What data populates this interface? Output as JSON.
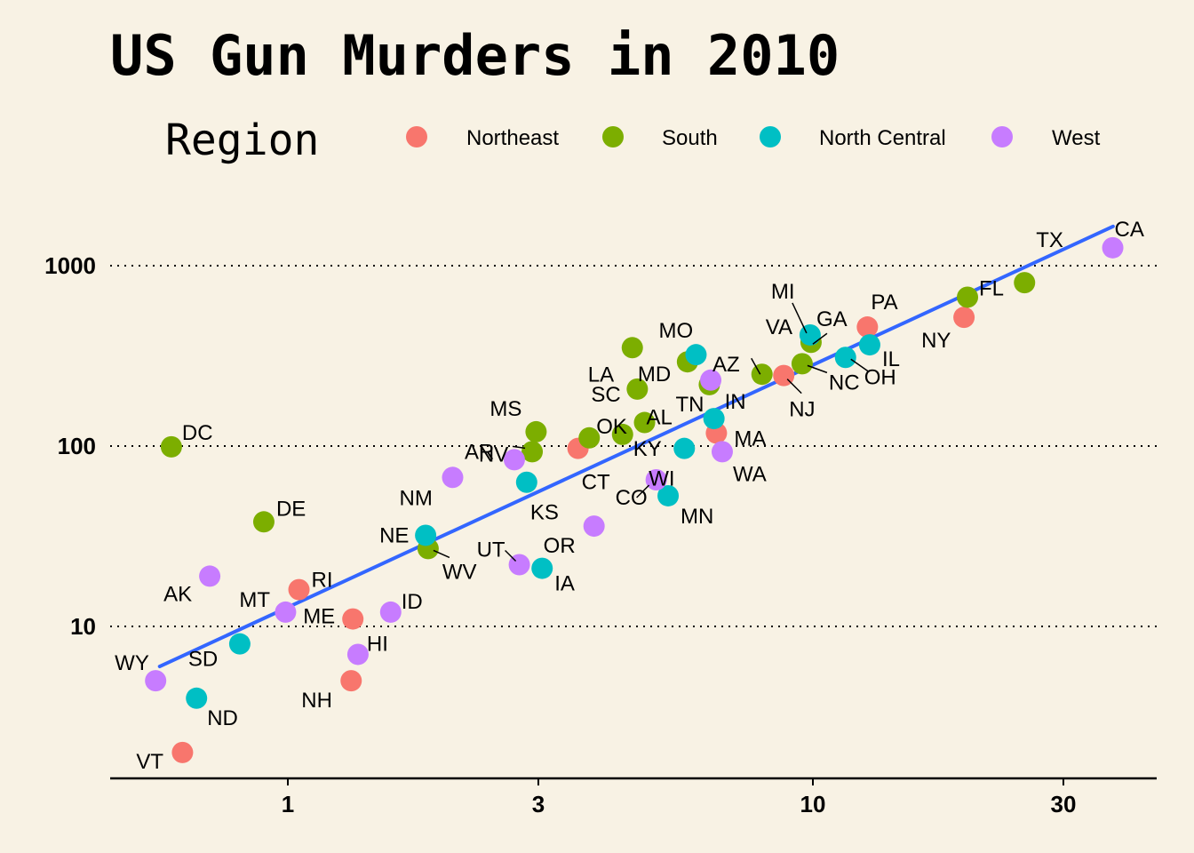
{
  "chart_data": {
    "type": "scatter",
    "title": "US Gun Murders in 2010",
    "xlabel": "",
    "ylabel": "",
    "x_scale": "log10",
    "y_scale": "log10",
    "xlim": [
      0.55,
      42
    ],
    "ylim": [
      2.0,
      2200
    ],
    "x_ticks": [
      1,
      3,
      10,
      30
    ],
    "x_tick_labels": [
      "1",
      "3",
      "10",
      "30"
    ],
    "y_ticks": [
      10,
      100,
      1000
    ],
    "y_tick_labels": [
      "10",
      "100",
      "1000"
    ],
    "grid": "horizontal dotted",
    "legend": {
      "title": "Region",
      "position": "top",
      "entries": [
        {
          "name": "Northeast",
          "color": "#f8766d"
        },
        {
          "name": "South",
          "color": "#7cae00"
        },
        {
          "name": "North Central",
          "color": "#00bfc4"
        },
        {
          "name": "West",
          "color": "#c77cff"
        }
      ]
    },
    "trend_line": {
      "color": "#3366ff",
      "x": [
        0.57,
        37.3
      ],
      "y": [
        6.0,
        1650
      ]
    },
    "series": [
      {
        "name": "Northeast",
        "color": "#f8766d",
        "points": [
          {
            "label": "VT",
            "x": 0.63,
            "y": 2.0
          },
          {
            "label": "NH",
            "x": 1.32,
            "y": 5.0
          },
          {
            "label": "ME",
            "x": 1.33,
            "y": 11
          },
          {
            "label": "RI",
            "x": 1.05,
            "y": 16
          },
          {
            "label": "CT",
            "x": 3.57,
            "y": 97
          },
          {
            "label": "MA",
            "x": 6.55,
            "y": 118
          },
          {
            "label": "NJ",
            "x": 8.8,
            "y": 246
          },
          {
            "label": "PA",
            "x": 12.7,
            "y": 457
          },
          {
            "label": "NY",
            "x": 19.4,
            "y": 517
          }
        ]
      },
      {
        "name": "South",
        "color": "#7cae00",
        "points": [
          {
            "label": "DC",
            "x": 0.6,
            "y": 99
          },
          {
            "label": "DE",
            "x": 0.9,
            "y": 38
          },
          {
            "label": "WV",
            "x": 1.85,
            "y": 27
          },
          {
            "label": "AR",
            "x": 2.92,
            "y": 93
          },
          {
            "label": "MS",
            "x": 2.97,
            "y": 120
          },
          {
            "label": "OK",
            "x": 3.75,
            "y": 111
          },
          {
            "label": "KY",
            "x": 4.34,
            "y": 116
          },
          {
            "label": "SC",
            "x": 4.63,
            "y": 207
          },
          {
            "label": "LA",
            "x": 4.53,
            "y": 351
          },
          {
            "label": "AL",
            "x": 4.78,
            "y": 135
          },
          {
            "label": "MD",
            "x": 5.77,
            "y": 293
          },
          {
            "label": "TN",
            "x": 6.35,
            "y": 219
          },
          {
            "label": "VA",
            "x": 8.0,
            "y": 250
          },
          {
            "label": "NC",
            "x": 9.54,
            "y": 286
          },
          {
            "label": "GA",
            "x": 9.92,
            "y": 376
          },
          {
            "label": "FL",
            "x": 19.7,
            "y": 669
          },
          {
            "label": "TX",
            "x": 25.3,
            "y": 805
          }
        ]
      },
      {
        "name": "North Central",
        "color": "#00bfc4",
        "points": [
          {
            "label": "ND",
            "x": 0.67,
            "y": 4.0
          },
          {
            "label": "SD",
            "x": 0.81,
            "y": 8.0
          },
          {
            "label": "NE",
            "x": 1.83,
            "y": 32
          },
          {
            "label": "IA",
            "x": 3.05,
            "y": 21
          },
          {
            "label": "KS",
            "x": 2.85,
            "y": 63
          },
          {
            "label": "MN",
            "x": 5.3,
            "y": 53
          },
          {
            "label": "WI",
            "x": 5.69,
            "y": 97
          },
          {
            "label": "MO",
            "x": 5.99,
            "y": 321
          },
          {
            "label": "IN",
            "x": 6.48,
            "y": 142
          },
          {
            "label": "MI",
            "x": 9.88,
            "y": 413
          },
          {
            "label": "OH",
            "x": 11.54,
            "y": 310
          },
          {
            "label": "IL",
            "x": 12.83,
            "y": 364
          }
        ]
      },
      {
        "name": "West",
        "color": "#c77cff",
        "points": [
          {
            "label": "WY",
            "x": 0.56,
            "y": 5.0
          },
          {
            "label": "AK",
            "x": 0.71,
            "y": 19
          },
          {
            "label": "MT",
            "x": 0.99,
            "y": 12
          },
          {
            "label": "HI",
            "x": 1.36,
            "y": 7.0
          },
          {
            "label": "ID",
            "x": 1.57,
            "y": 12
          },
          {
            "label": "NM",
            "x": 2.06,
            "y": 67
          },
          {
            "label": "NV",
            "x": 2.7,
            "y": 84
          },
          {
            "label": "UT",
            "x": 2.76,
            "y": 22
          },
          {
            "label": "OR",
            "x": 3.83,
            "y": 36
          },
          {
            "label": "CO",
            "x": 5.03,
            "y": 65
          },
          {
            "label": "AZ",
            "x": 6.39,
            "y": 232
          },
          {
            "label": "WA",
            "x": 6.72,
            "y": 93
          },
          {
            "label": "CA",
            "x": 37.25,
            "y": 1257
          }
        ]
      }
    ]
  }
}
